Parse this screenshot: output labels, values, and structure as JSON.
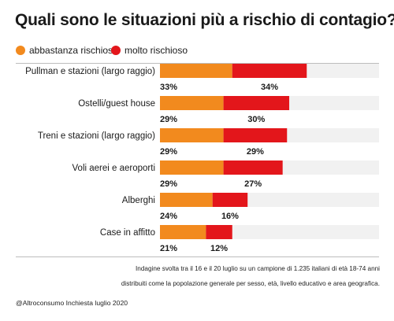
{
  "header": {
    "title": "Quali sono le situazioni più a rischio di contagio?"
  },
  "colors": {
    "abbastanza": "#f28a1e",
    "molto": "#e3161b",
    "track": "#f1f1f1",
    "rule": "#bdbdbd"
  },
  "chart_data": {
    "type": "bar",
    "orientation": "horizontal",
    "stacked": true,
    "categories": [
      "Pullman e stazioni (largo raggio)",
      "Ostelli/guest house",
      "Treni e stazioni (largo raggio)",
      "Voli aerei e aeroporti",
      "Alberghi",
      "Case in affitto"
    ],
    "series": [
      {
        "name": "abbastanza rischioso",
        "values": [
          33,
          29,
          29,
          29,
          24,
          21
        ]
      },
      {
        "name": "molto rischioso",
        "values": [
          34,
          30,
          29,
          27,
          16,
          12
        ]
      }
    ],
    "xlim": [
      0,
      100
    ],
    "grid": false,
    "legend_position": "top-left"
  },
  "footer": {
    "note_line1": "Indagine svolta tra il 16 e il 20 luglio su un campione di 1.235 italiani di età 18-74 anni",
    "note_line2": "distribuiti come la popolazione generale per sesso, età, livello educativo e area geografica.",
    "source": "@Altroconsumo Inchiesta luglio 2020"
  }
}
